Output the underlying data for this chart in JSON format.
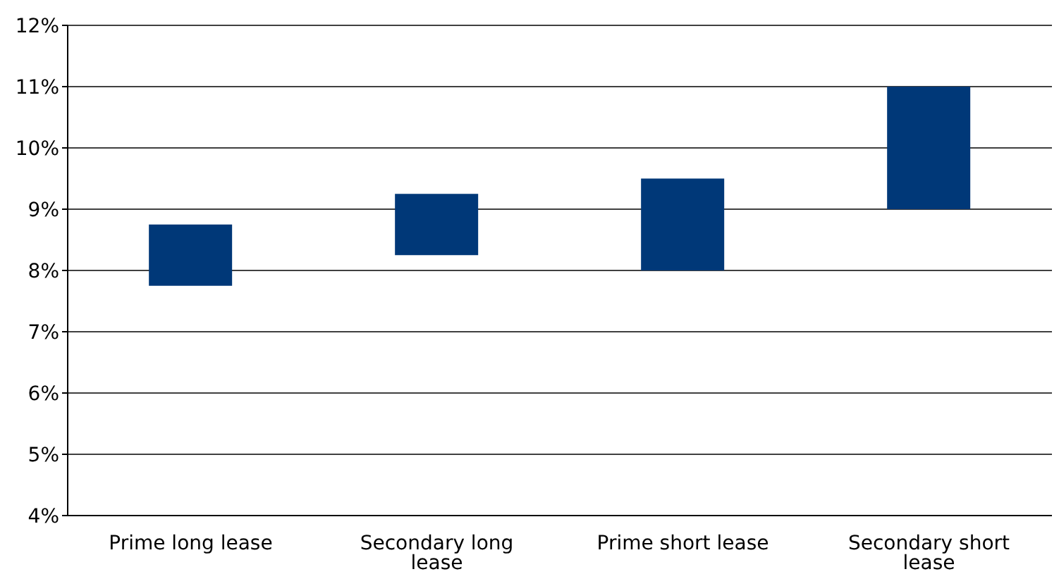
{
  "chart_data": {
    "type": "bar",
    "categories": [
      "Prime long lease",
      "Secondary long lease",
      "Prime short lease",
      "Secondary short lease"
    ],
    "values": [
      1,
      1,
      1.5,
      2
    ],
    "base": [
      7.75,
      8.25,
      8,
      9
    ],
    "color": "#003878",
    "ylim": [
      4,
      12
    ],
    "yticks": [
      {
        "value": 4,
        "label": "4%"
      },
      {
        "value": 5,
        "label": "5%"
      },
      {
        "value": 6,
        "label": "6%"
      },
      {
        "value": 7,
        "label": "7%"
      },
      {
        "value": 8,
        "label": "8%"
      },
      {
        "value": 9,
        "label": "9%"
      },
      {
        "value": 10,
        "label": "10%"
      },
      {
        "value": 11,
        "label": "11%"
      },
      {
        "value": 12,
        "label": "12%"
      }
    ],
    "grid": "y"
  }
}
